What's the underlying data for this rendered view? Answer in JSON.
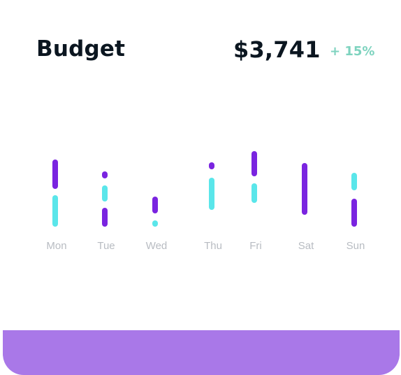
{
  "header": {
    "title": "Budget",
    "amount": "$3,741",
    "change": "+ 15%"
  },
  "colors": {
    "purple": "#7a24e0",
    "cyan": "#5ae6ea",
    "change_green": "#7ed3bf",
    "day_label": "#b8bcc2",
    "footer": "#a978e8"
  },
  "chart_data": {
    "type": "bar",
    "categories": [
      "Mon",
      "Tue",
      "Wed",
      "Thu",
      "Fri",
      "Sat",
      "Sun"
    ],
    "ylim": [
      0,
      120
    ],
    "segments": [
      [
        {
          "color": "cyan",
          "from": 0,
          "to": 45
        },
        {
          "color": "purple",
          "from": 54,
          "to": 96
        }
      ],
      [
        {
          "color": "purple",
          "from": 0,
          "to": 27
        },
        {
          "color": "cyan",
          "from": 36,
          "to": 59
        },
        {
          "color": "purple",
          "from": 69,
          "to": 79
        }
      ],
      [
        {
          "color": "cyan",
          "from": 0,
          "to": 9
        },
        {
          "color": "purple",
          "from": 19,
          "to": 43
        }
      ],
      [
        {
          "color": "cyan",
          "from": 24,
          "to": 70
        },
        {
          "color": "purple",
          "from": 82,
          "to": 92
        }
      ],
      [
        {
          "color": "cyan",
          "from": 34,
          "to": 62
        },
        {
          "color": "purple",
          "from": 72,
          "to": 108
        }
      ],
      [
        {
          "color": "purple",
          "from": 17,
          "to": 91
        }
      ],
      [
        {
          "color": "purple",
          "from": 0,
          "to": 40
        },
        {
          "color": "cyan",
          "from": 52,
          "to": 77
        }
      ]
    ]
  }
}
